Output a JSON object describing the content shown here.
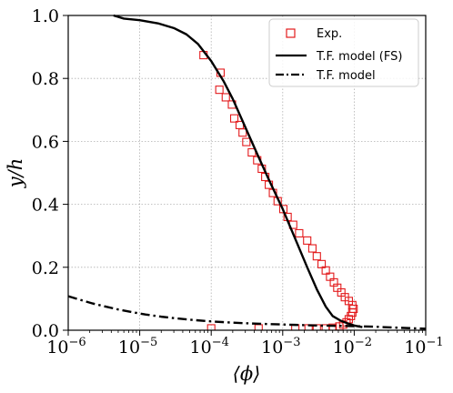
{
  "chart_data": {
    "type": "line",
    "xlabel": "⟨ϕ⟩",
    "ylabel": "y/h",
    "x_scale": "log",
    "xlim": [
      1e-06,
      0.1
    ],
    "ylim": [
      0.0,
      1.0
    ],
    "x_ticks": [
      {
        "value": 1e-06,
        "base": "10",
        "exp": "−6"
      },
      {
        "value": 1e-05,
        "base": "10",
        "exp": "−5"
      },
      {
        "value": 0.0001,
        "base": "10",
        "exp": "−4"
      },
      {
        "value": 0.001,
        "base": "10",
        "exp": "−3"
      },
      {
        "value": 0.01,
        "base": "10",
        "exp": "−2"
      },
      {
        "value": 0.1,
        "base": "10",
        "exp": "−1"
      }
    ],
    "y_ticks": [
      {
        "value": 0.0,
        "label": "0.0"
      },
      {
        "value": 0.2,
        "label": "0.2"
      },
      {
        "value": 0.4,
        "label": "0.4"
      },
      {
        "value": 0.6,
        "label": "0.6"
      },
      {
        "value": 0.8,
        "label": "0.8"
      },
      {
        "value": 1.0,
        "label": "1.0"
      }
    ],
    "grid": true,
    "legend_position": "top-right",
    "series": [
      {
        "name": "Exp.",
        "style": "markers",
        "marker": "square",
        "color": "#e31a1c",
        "points": [
          [
            7.8e-05,
            0.874
          ],
          [
            0.000135,
            0.818
          ],
          [
            0.00013,
            0.764
          ],
          [
            0.00016,
            0.74
          ],
          [
            0.000195,
            0.717
          ],
          [
            0.00021,
            0.673
          ],
          [
            0.00025,
            0.652
          ],
          [
            0.000275,
            0.628
          ],
          [
            0.00031,
            0.598
          ],
          [
            0.00037,
            0.565
          ],
          [
            0.00044,
            0.54
          ],
          [
            0.00051,
            0.513
          ],
          [
            0.00057,
            0.487
          ],
          [
            0.00064,
            0.462
          ],
          [
            0.00073,
            0.436
          ],
          [
            0.00085,
            0.41
          ],
          [
            0.00102,
            0.385
          ],
          [
            0.00117,
            0.36
          ],
          [
            0.0014,
            0.335
          ],
          [
            0.0017,
            0.308
          ],
          [
            0.0022,
            0.285
          ],
          [
            0.0026,
            0.26
          ],
          [
            0.003,
            0.235
          ],
          [
            0.0035,
            0.21
          ],
          [
            0.004,
            0.19
          ],
          [
            0.0046,
            0.17
          ],
          [
            0.0052,
            0.152
          ],
          [
            0.0058,
            0.135
          ],
          [
            0.0066,
            0.12
          ],
          [
            0.0074,
            0.105
          ],
          [
            0.0084,
            0.093
          ],
          [
            0.0094,
            0.08
          ],
          [
            0.0098,
            0.068
          ],
          [
            0.0094,
            0.056
          ],
          [
            0.009,
            0.045
          ],
          [
            0.0084,
            0.035
          ],
          [
            0.0078,
            0.025
          ],
          [
            0.007,
            0.018
          ],
          [
            0.0062,
            0.012
          ],
          [
            0.005,
            0.008
          ],
          [
            0.004,
            0.006
          ],
          [
            0.003,
            0.006
          ],
          [
            0.0023,
            0.006
          ],
          [
            0.0015,
            0.006
          ],
          [
            0.00046,
            0.006
          ],
          [
            0.0001,
            0.006
          ]
        ]
      },
      {
        "name": "T.F. model (FS)",
        "style": "solid",
        "color": "#000000",
        "points": [
          [
            4.3e-06,
            1.0
          ],
          [
            6e-06,
            0.99
          ],
          [
            1e-05,
            0.985
          ],
          [
            1.8e-05,
            0.975
          ],
          [
            3e-05,
            0.96
          ],
          [
            4.5e-05,
            0.94
          ],
          [
            6.5e-05,
            0.91
          ],
          [
            0.0001,
            0.855
          ],
          [
            0.00015,
            0.79
          ],
          [
            0.0002,
            0.735
          ],
          [
            0.0003,
            0.645
          ],
          [
            0.00045,
            0.555
          ],
          [
            0.00065,
            0.475
          ],
          [
            0.001,
            0.385
          ],
          [
            0.0015,
            0.29
          ],
          [
            0.0022,
            0.2
          ],
          [
            0.003,
            0.13
          ],
          [
            0.004,
            0.075
          ],
          [
            0.005,
            0.045
          ],
          [
            0.0065,
            0.03
          ],
          [
            0.0085,
            0.02
          ],
          [
            0.01,
            0.015
          ],
          [
            0.0115,
            0.012
          ],
          [
            0.013,
            0.01
          ]
        ]
      },
      {
        "name": "T.F. model",
        "style": "dashdot",
        "color": "#000000",
        "points": [
          [
            1e-06,
            0.108
          ],
          [
            1.5e-06,
            0.096
          ],
          [
            2.2e-06,
            0.085
          ],
          [
            3.2e-06,
            0.076
          ],
          [
            5e-06,
            0.066
          ],
          [
            8e-06,
            0.057
          ],
          [
            1.2e-05,
            0.05
          ],
          [
            2e-05,
            0.043
          ],
          [
            3.5e-05,
            0.037
          ],
          [
            6e-05,
            0.032
          ],
          [
            0.0001,
            0.028
          ],
          [
            0.0002,
            0.024
          ],
          [
            0.0004,
            0.021
          ],
          [
            0.0008,
            0.019
          ],
          [
            0.0015,
            0.017
          ],
          [
            0.003,
            0.015
          ],
          [
            0.006,
            0.014
          ],
          [
            0.01,
            0.013
          ],
          [
            0.02,
            0.011
          ],
          [
            0.04,
            0.008
          ],
          [
            0.07,
            0.006
          ],
          [
            0.1,
            0.005
          ]
        ]
      }
    ]
  }
}
